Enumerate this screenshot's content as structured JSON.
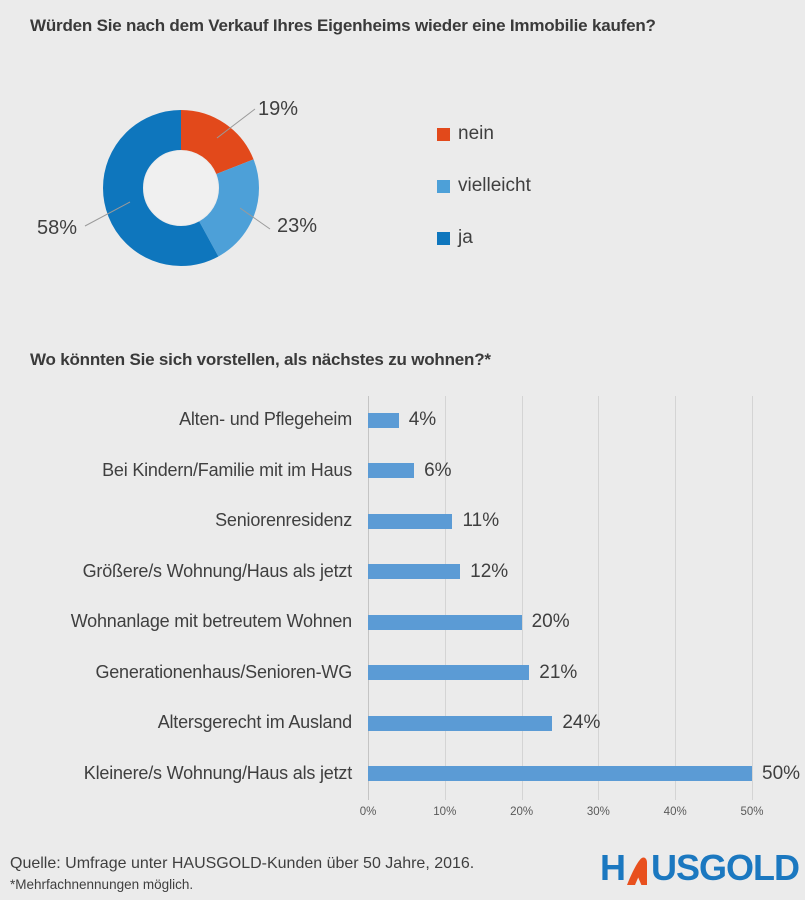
{
  "page": {
    "background": "#ebebeb"
  },
  "footer": {
    "source": "Quelle: Umfrage unter HAUSGOLD-Kunden über 50 Jahre, 2016.",
    "footnote": "*Mehrfachnennungen möglich.",
    "logo": {
      "prefix": "H",
      "suffix": "USGOLD",
      "brand_blue": "#1b78c0",
      "brand_orange": "#e8501e"
    }
  },
  "chart_data": [
    {
      "type": "pie",
      "subtype": "donut",
      "title": "Würden Sie nach dem Verkauf Ihres Eigenheims wieder eine Immobilie kaufen?",
      "slices": [
        {
          "name": "nein",
          "value": 19,
          "label": "19%",
          "color": "#e2491b"
        },
        {
          "name": "vielleicht",
          "value": 23,
          "label": "23%",
          "color": "#4da0d8"
        },
        {
          "name": "ja",
          "value": 58,
          "label": "58%",
          "color": "#0e76bd"
        }
      ],
      "start_angle": "top",
      "direction": "clockwise",
      "legend_position": "right",
      "hole_color": "#f0f0f0"
    },
    {
      "type": "bar",
      "orientation": "horizontal",
      "title": "Wo könnten Sie sich vorstellen, als nächstes zu wohnen?*",
      "categories": [
        "Alten- und Pflegeheim",
        "Bei Kindern/Familie mit im Haus",
        "Seniorenresidenz",
        "Größere/s Wohnung/Haus als jetzt",
        "Wohnanlage mit betreutem Wohnen",
        "Generationenhaus/Senioren-WG",
        "Altersgerecht im Ausland",
        "Kleinere/s Wohnung/Haus als jetzt"
      ],
      "values": [
        4,
        6,
        11,
        12,
        20,
        21,
        24,
        50
      ],
      "value_labels": [
        "4%",
        "6%",
        "11%",
        "12%",
        "20%",
        "21%",
        "24%",
        "50%"
      ],
      "bar_color": "#5b9bd5",
      "xlabel": "",
      "ylabel": "",
      "xlim": [
        0,
        50
      ],
      "x_ticks": [
        "0%",
        "10%",
        "20%",
        "30%",
        "40%",
        "50%"
      ],
      "x_tick_values": [
        0,
        10,
        20,
        30,
        40,
        50
      ],
      "grid": true
    }
  ]
}
